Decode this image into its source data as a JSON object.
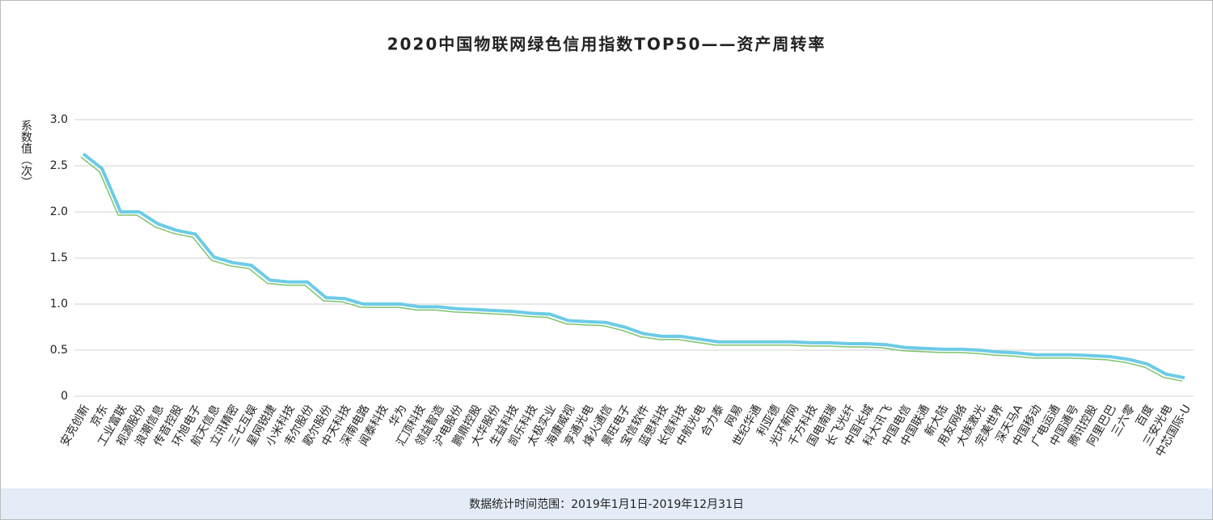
{
  "chart_data": {
    "type": "line",
    "title": "2020中国物联网绿色信用指数TOP50——资产周转率",
    "y_label": "系数值（次）",
    "footnote": "数据统计时间范围：2019年1月1日-2019年12月31日",
    "categories": [
      "安克创新",
      "京东",
      "工业富联",
      "视源股份",
      "浪潮信息",
      "传音控股",
      "环旭电子",
      "航天信息",
      "立讯精密",
      "三七互娱",
      "星网锐捷",
      "小米科技",
      "韦尔股份",
      "歌尔股份",
      "中天科技",
      "深南电路",
      "闻泰科技",
      "华为",
      "汇顶科技",
      "领益智造",
      "沪电股份",
      "鹏鼎控股",
      "大华股份",
      "生益科技",
      "凯乐科技",
      "太极实业",
      "海康威视",
      "亨通光电",
      "烽火通信",
      "景旺电子",
      "宝信软件",
      "蓝思科技",
      "长信科技",
      "中航光电",
      "合力泰",
      "网易",
      "世纪华通",
      "利亚德",
      "光环新网",
      "千方科技",
      "国电南瑞",
      "长飞光纤",
      "中国长城",
      "科大讯飞",
      "中国电信",
      "中国联通",
      "新大陆",
      "用友网络",
      "大族激光",
      "完美世界",
      "深天马A",
      "中国移动",
      "广电运通",
      "中国通号",
      "腾讯控股",
      "阿里巴巴",
      "三六零",
      "百度",
      "三安光电",
      "中芯国际-U"
    ],
    "series": [
      {
        "color": "#6ccbe6",
        "shadow_color": "#7dc36b",
        "values": [
          2.63,
          2.47,
          2.0,
          2.0,
          1.87,
          1.8,
          1.76,
          1.51,
          1.45,
          1.42,
          1.26,
          1.24,
          1.24,
          1.07,
          1.06,
          1.0,
          1.0,
          1.0,
          0.97,
          0.97,
          0.95,
          0.94,
          0.93,
          0.92,
          0.9,
          0.89,
          0.82,
          0.81,
          0.8,
          0.75,
          0.68,
          0.65,
          0.65,
          0.62,
          0.59,
          0.59,
          0.59,
          0.59,
          0.59,
          0.58,
          0.58,
          0.57,
          0.57,
          0.56,
          0.53,
          0.52,
          0.51,
          0.51,
          0.5,
          0.48,
          0.47,
          0.45,
          0.45,
          0.45,
          0.44,
          0.43,
          0.4,
          0.35,
          0.24,
          0.2
        ]
      }
    ],
    "ylim": [
      0,
      3
    ],
    "yticks": [
      0,
      0.5,
      {
        "value": 1,
        "label": "1.0"
      },
      1.5,
      {
        "value": 2,
        "label": "2.0"
      },
      2.5,
      {
        "value": 3,
        "label": "3.0"
      }
    ],
    "grid": true
  }
}
